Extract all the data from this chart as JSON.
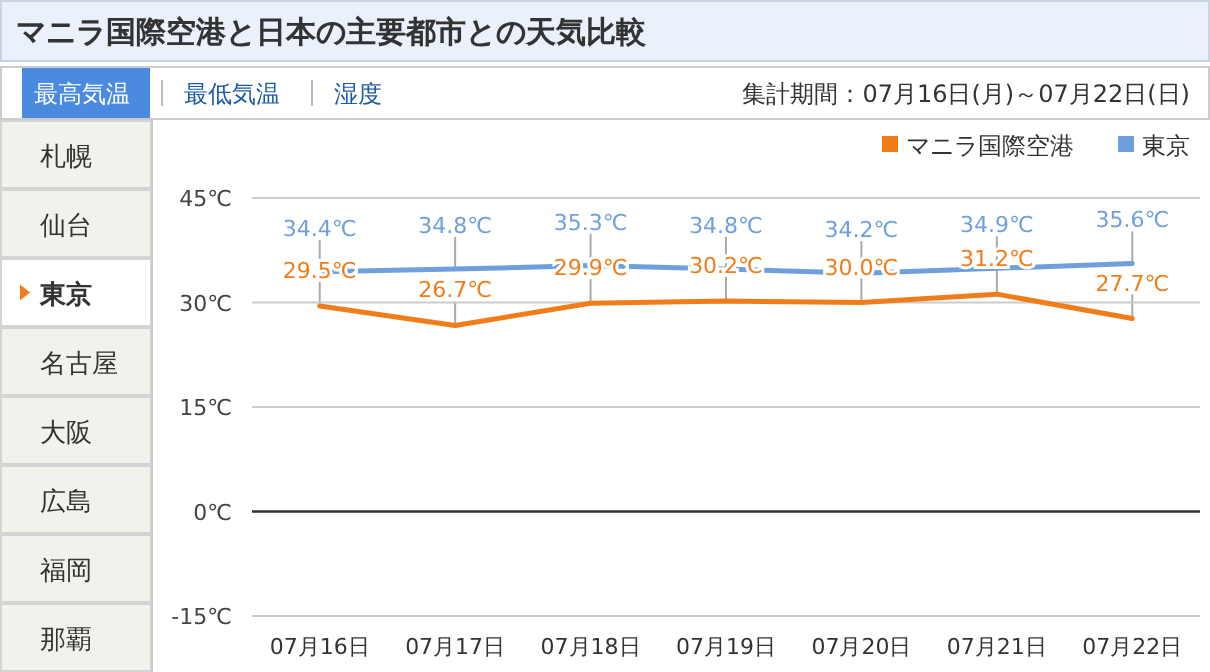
{
  "chart_data": {
    "type": "line",
    "title": "マニラ国際空港と日本の主要都市との天気比較",
    "annotations": [
      "最高気温",
      "最低気温",
      "湿度",
      "集計期間：07月16日(月)～07月22日(日)",
      "札幌",
      "仙台",
      "東京",
      "名古屋",
      "大阪",
      "広島",
      "福岡",
      "那覇"
    ],
    "categories": [
      "07月16日",
      "07月17日",
      "07月18日",
      "07月19日",
      "07月20日",
      "07月21日",
      "07月22日"
    ],
    "series": [
      {
        "name": "マニラ国際空港",
        "color": "#f07d1a",
        "values": [
          29.5,
          26.7,
          29.9,
          30.2,
          30.0,
          31.2,
          27.7
        ],
        "value_labels": [
          "29.5℃",
          "26.7℃",
          "29.9℃",
          "30.2℃",
          "30.0℃",
          "31.2℃",
          "27.7℃"
        ]
      },
      {
        "name": "東京",
        "color": "#6fa0dc",
        "values": [
          34.4,
          34.8,
          35.3,
          34.8,
          34.2,
          34.9,
          35.6
        ],
        "value_labels": [
          "34.4℃",
          "34.8℃",
          "35.3℃",
          "34.8℃",
          "34.2℃",
          "34.9℃",
          "35.6℃"
        ]
      }
    ],
    "ylim": [
      -15,
      45
    ],
    "yticks": [
      {
        "value": -15,
        "label": "-15℃"
      },
      {
        "value": 0,
        "label": "0℃"
      },
      {
        "value": 15,
        "label": "15℃"
      },
      {
        "value": 30,
        "label": "30℃"
      },
      {
        "value": 45,
        "label": "45℃"
      }
    ],
    "grid": "y",
    "legend": "top right",
    "marker": "none",
    "line_style": "solid"
  }
}
